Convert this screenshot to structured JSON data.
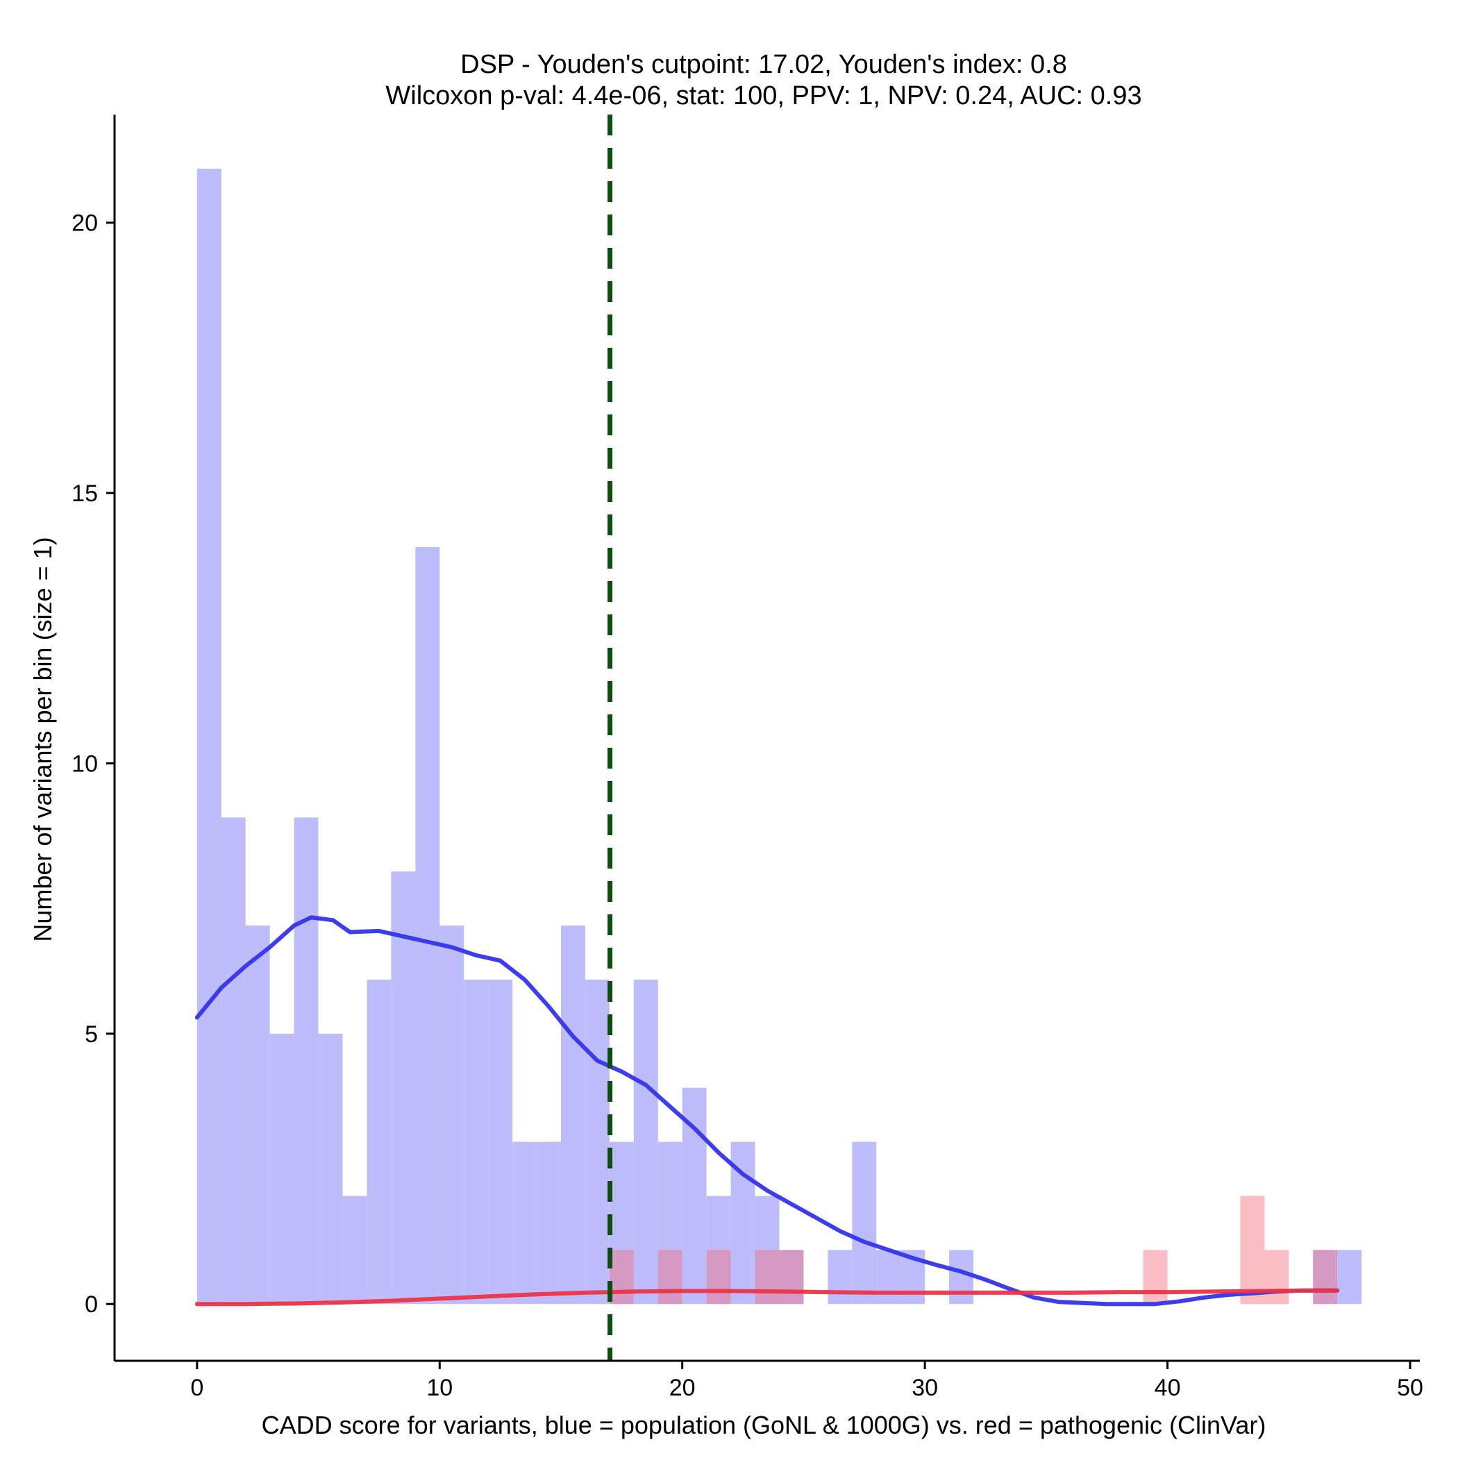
{
  "chart_data": {
    "type": "histogram",
    "title_line1": "DSP - Youden's cutpoint: 17.02, Youden's index: 0.8",
    "title_line2": "Wilcoxon p-val: 4.4e-06, stat: 100, PPV: 1, NPV: 0.24, AUC: 0.93",
    "xlabel": "CADD score for variants, blue = population (GoNL & 1000G) vs. red = pathogenic (ClinVar)",
    "ylabel": "Number of variants per bin (size = 1)",
    "xlim": [
      -3.4,
      50.4
    ],
    "ylim": [
      -1.05,
      22.0
    ],
    "x_ticks": [
      0,
      10,
      20,
      30,
      40,
      50
    ],
    "y_ticks": [
      0,
      5,
      10,
      15,
      20
    ],
    "bin_size": 1,
    "cutpoint": 17.02,
    "colors": {
      "population_bar": "#bdbdfb",
      "pathogenic_bar": "#fbbdbd",
      "overlap_bar": "#cf94c5",
      "population_curve": "#3333ee",
      "pathogenic_curve": "#ee3344",
      "cutpoint_line": "#0d4d0d"
    },
    "series": [
      {
        "name": "population (GoNL & 1000G)",
        "bins": [
          [
            0,
            21
          ],
          [
            1,
            9
          ],
          [
            2,
            7
          ],
          [
            3,
            5
          ],
          [
            4,
            9
          ],
          [
            5,
            5
          ],
          [
            6,
            2
          ],
          [
            7,
            6
          ],
          [
            8,
            8
          ],
          [
            9,
            14
          ],
          [
            10,
            7
          ],
          [
            11,
            6
          ],
          [
            12,
            6
          ],
          [
            13,
            3
          ],
          [
            14,
            3
          ],
          [
            15,
            7
          ],
          [
            16,
            6
          ],
          [
            17,
            3
          ],
          [
            18,
            6
          ],
          [
            19,
            3
          ],
          [
            20,
            4
          ],
          [
            21,
            2
          ],
          [
            22,
            3
          ],
          [
            23,
            2
          ],
          [
            24,
            1
          ],
          [
            26,
            1
          ],
          [
            27,
            3
          ],
          [
            28,
            1
          ],
          [
            29,
            1
          ],
          [
            31,
            1
          ],
          [
            46,
            1
          ],
          [
            47,
            1
          ]
        ],
        "density": [
          [
            0,
            5.3
          ],
          [
            1,
            5.85
          ],
          [
            2,
            6.25
          ],
          [
            3,
            6.6
          ],
          [
            4,
            7.0
          ],
          [
            4.7,
            7.15
          ],
          [
            5.6,
            7.1
          ],
          [
            6.3,
            6.88
          ],
          [
            7.5,
            6.9
          ],
          [
            8.5,
            6.8
          ],
          [
            9.5,
            6.7
          ],
          [
            10.5,
            6.6
          ],
          [
            11.5,
            6.45
          ],
          [
            12.5,
            6.35
          ],
          [
            13.5,
            6.0
          ],
          [
            14.5,
            5.5
          ],
          [
            15.5,
            4.95
          ],
          [
            16.5,
            4.5
          ],
          [
            17.5,
            4.3
          ],
          [
            18.5,
            4.05
          ],
          [
            19.5,
            3.65
          ],
          [
            20.5,
            3.25
          ],
          [
            21.5,
            2.8
          ],
          [
            22.5,
            2.4
          ],
          [
            23.5,
            2.1
          ],
          [
            24.5,
            1.85
          ],
          [
            25.5,
            1.6
          ],
          [
            26.5,
            1.35
          ],
          [
            27.5,
            1.15
          ],
          [
            28.5,
            1.0
          ],
          [
            29.5,
            0.85
          ],
          [
            30.5,
            0.72
          ],
          [
            31.5,
            0.6
          ],
          [
            32.5,
            0.45
          ],
          [
            33.5,
            0.28
          ],
          [
            34.5,
            0.12
          ],
          [
            35.5,
            0.04
          ],
          [
            36.5,
            0.02
          ],
          [
            37.5,
            0.0
          ],
          [
            38.5,
            0.0
          ],
          [
            39.5,
            0.0
          ],
          [
            40.5,
            0.05
          ],
          [
            41.5,
            0.12
          ],
          [
            42.5,
            0.17
          ],
          [
            43.5,
            0.2
          ],
          [
            44.5,
            0.23
          ],
          [
            45.5,
            0.25
          ],
          [
            46.5,
            0.25
          ],
          [
            47,
            0.25
          ]
        ]
      },
      {
        "name": "pathogenic (ClinVar)",
        "bins": [
          [
            17,
            1
          ],
          [
            19,
            1
          ],
          [
            21,
            1
          ],
          [
            23,
            1
          ],
          [
            24,
            1
          ],
          [
            39,
            1
          ],
          [
            43,
            2
          ],
          [
            44,
            1
          ],
          [
            46,
            1
          ]
        ],
        "density": [
          [
            0,
            0.0
          ],
          [
            2,
            0.0
          ],
          [
            4,
            0.01
          ],
          [
            6,
            0.03
          ],
          [
            8,
            0.06
          ],
          [
            10,
            0.1
          ],
          [
            12,
            0.14
          ],
          [
            14,
            0.18
          ],
          [
            16,
            0.21
          ],
          [
            18,
            0.23
          ],
          [
            20,
            0.24
          ],
          [
            22,
            0.24
          ],
          [
            24,
            0.23
          ],
          [
            26,
            0.22
          ],
          [
            28,
            0.21
          ],
          [
            30,
            0.21
          ],
          [
            32,
            0.21
          ],
          [
            34,
            0.21
          ],
          [
            36,
            0.21
          ],
          [
            38,
            0.22
          ],
          [
            40,
            0.22
          ],
          [
            42,
            0.23
          ],
          [
            44,
            0.24
          ],
          [
            46,
            0.25
          ],
          [
            47,
            0.25
          ]
        ]
      }
    ]
  }
}
